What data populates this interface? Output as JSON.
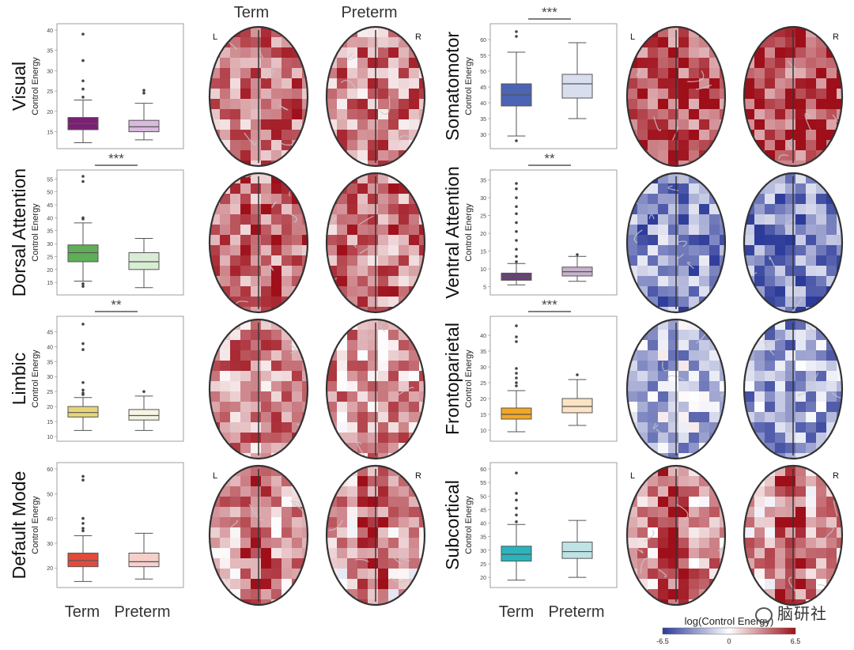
{
  "header": {
    "left_label": "Term",
    "right_label": "Preterm"
  },
  "hemisphere_labels": {
    "left": "L",
    "right": "R"
  },
  "axis_label": "Control Energy",
  "x_categories": [
    "Term",
    "Preterm"
  ],
  "colorbar": {
    "label": "log(Control Energy)",
    "min": "-6.5",
    "mid": "0",
    "max": "6.5",
    "colors": [
      "#2c3a99",
      "#ffffff",
      "#9e0f1a"
    ]
  },
  "watermark": "脑研社",
  "chart_data": [
    {
      "type": "box",
      "network": "Visual",
      "column": "left",
      "significance": "",
      "ylim": [
        12,
        40
      ],
      "yticks": [
        "15",
        "20",
        "25",
        "30",
        "35",
        "40"
      ],
      "color_term": "#7a1f73",
      "color_preterm": "#d9b9dd",
      "series": [
        {
          "q1": 15.5,
          "median": 17.0,
          "q3": 18.5,
          "whisker_low": 12.3,
          "whisker_high": 22.8,
          "outliers": [
            23.5,
            25.5,
            27.5,
            32.5,
            39.0
          ]
        },
        {
          "q1": 15.0,
          "median": 16.2,
          "q3": 17.8,
          "whisker_low": 13.0,
          "whisker_high": 22.0,
          "outliers": [
            24.5,
            25.2
          ]
        }
      ]
    },
    {
      "type": "box",
      "network": "Dorsal Attention",
      "column": "left",
      "significance": "***",
      "ylim": [
        12,
        56
      ],
      "yticks": [
        "15",
        "20",
        "25",
        "30",
        "35",
        "40",
        "45",
        "50",
        "55"
      ],
      "color_term": "#5fae58",
      "color_preterm": "#d9ecd4",
      "series": [
        {
          "q1": 23.0,
          "median": 26.5,
          "q3": 29.5,
          "whisker_low": 15.5,
          "whisker_high": 38.0,
          "outliers": [
            13.5,
            14.5,
            39.5,
            40.0,
            54.0,
            56.0
          ]
        },
        {
          "q1": 20.0,
          "median": 23.0,
          "q3": 26.5,
          "whisker_low": 13.0,
          "whisker_high": 32.0,
          "outliers": []
        }
      ]
    },
    {
      "type": "box",
      "network": "Limbic",
      "column": "left",
      "significance": "**",
      "ylim": [
        10,
        48
      ],
      "yticks": [
        "10",
        "15",
        "20",
        "25",
        "30",
        "35",
        "40",
        "45"
      ],
      "color_term": "#e6d67a",
      "color_preterm": "#f6f5e2",
      "series": [
        {
          "q1": 16.5,
          "median": 18.0,
          "q3": 20.0,
          "whisker_low": 12.0,
          "whisker_high": 23.0,
          "outliers": [
            24.0,
            24.5,
            25.5,
            28.0,
            39.0,
            41.0,
            47.5
          ]
        },
        {
          "q1": 15.5,
          "median": 17.0,
          "q3": 19.0,
          "whisker_low": 12.0,
          "whisker_high": 23.5,
          "outliers": [
            25.0
          ]
        }
      ]
    },
    {
      "type": "box",
      "network": "Default Mode",
      "column": "left",
      "significance": "",
      "ylim": [
        14,
        60
      ],
      "yticks": [
        "20",
        "30",
        "40",
        "50",
        "60"
      ],
      "color_term": "#e24a3b",
      "color_preterm": "#f6cfc9",
      "series": [
        {
          "q1": 20.5,
          "median": 23.0,
          "q3": 26.0,
          "whisker_low": 14.5,
          "whisker_high": 33.0,
          "outliers": [
            35.0,
            36.0,
            38.0,
            40.0,
            55.5,
            57.0
          ]
        },
        {
          "q1": 20.5,
          "median": 22.5,
          "q3": 26.0,
          "whisker_low": 15.5,
          "whisker_high": 34.0,
          "outliers": []
        }
      ]
    },
    {
      "type": "box",
      "network": "Somatomotor",
      "column": "right",
      "significance": "***",
      "ylim": [
        27,
        63
      ],
      "yticks": [
        "30",
        "35",
        "40",
        "45",
        "50",
        "55",
        "60"
      ],
      "color_term": "#4c64b4",
      "color_preterm": "#d8deed",
      "series": [
        {
          "q1": 39.0,
          "median": 42.5,
          "q3": 46.0,
          "whisker_low": 29.5,
          "whisker_high": 56.0,
          "outliers": [
            28.0,
            61.0,
            62.5
          ]
        },
        {
          "q1": 41.5,
          "median": 46.0,
          "q3": 49.0,
          "whisker_low": 35.0,
          "whisker_high": 59.0,
          "outliers": []
        }
      ]
    },
    {
      "type": "box",
      "network": "Ventral Attention",
      "column": "right",
      "significance": "**",
      "ylim": [
        4,
        36
      ],
      "yticks": [
        "5",
        "10",
        "15",
        "20",
        "25",
        "30",
        "35"
      ],
      "color_term": "#6c3e7a",
      "color_preterm": "#c7b2cc",
      "series": [
        {
          "q1": 6.8,
          "median": 7.8,
          "q3": 8.8,
          "whisker_low": 5.5,
          "whisker_high": 11.5,
          "outliers": [
            12.0,
            13.5,
            15.5,
            18.0,
            20.5,
            23.0,
            25.5,
            27.5,
            30.0,
            32.5,
            34.0
          ]
        },
        {
          "q1": 8.0,
          "median": 9.2,
          "q3": 10.5,
          "whisker_low": 6.5,
          "whisker_high": 13.5,
          "outliers": [
            14.0
          ]
        }
      ]
    },
    {
      "type": "box",
      "network": "Frontoparietal",
      "column": "right",
      "significance": "***",
      "ylim": [
        8,
        44
      ],
      "yticks": [
        "10",
        "15",
        "20",
        "25",
        "30",
        "35",
        "40"
      ],
      "color_term": "#f5a623",
      "color_preterm": "#fbe3c3",
      "series": [
        {
          "q1": 13.5,
          "median": 15.0,
          "q3": 17.0,
          "whisker_low": 9.5,
          "whisker_high": 22.5,
          "outliers": [
            24.0,
            25.0,
            26.5,
            28.0,
            29.5,
            38.0,
            39.5,
            43.0
          ]
        },
        {
          "q1": 15.5,
          "median": 17.5,
          "q3": 20.0,
          "whisker_low": 11.5,
          "whisker_high": 26.0,
          "outliers": [
            27.5
          ]
        }
      ]
    },
    {
      "type": "box",
      "network": "Subcortical",
      "column": "right",
      "significance": "",
      "ylim": [
        18,
        60
      ],
      "yticks": [
        "20",
        "25",
        "30",
        "35",
        "40",
        "45",
        "50",
        "55",
        "60"
      ],
      "color_term": "#2ab4bd",
      "color_preterm": "#bfe3e4",
      "series": [
        {
          "q1": 26.0,
          "median": 28.5,
          "q3": 31.5,
          "whisker_low": 19.0,
          "whisker_high": 39.5,
          "outliers": [
            40.5,
            43.0,
            45.5,
            48.5,
            51.0,
            58.5
          ]
        },
        {
          "q1": 27.0,
          "median": 29.5,
          "q3": 33.0,
          "whisker_low": 20.0,
          "whisker_high": 41.0,
          "outliers": []
        }
      ]
    }
  ]
}
